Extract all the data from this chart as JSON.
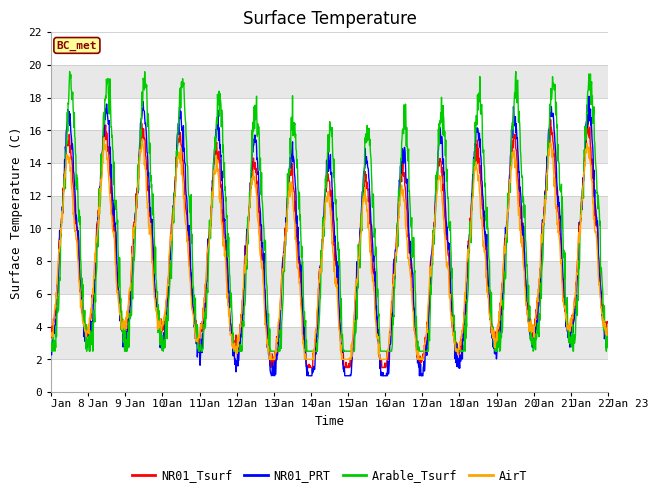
{
  "title": "Surface Temperature",
  "xlabel": "Time",
  "ylabel": "Surface Temperature (C)",
  "ylim": [
    0,
    22
  ],
  "yticks": [
    0,
    2,
    4,
    6,
    8,
    10,
    12,
    14,
    16,
    18,
    20,
    22
  ],
  "xtick_labels": [
    "Jan 8",
    "Jan 9",
    "Jan 10",
    "Jan 11",
    "Jan 12",
    "Jan 13",
    "Jan 14",
    "Jan 15",
    "Jan 16",
    "Jan 17",
    "Jan 18",
    "Jan 19",
    "Jan 20",
    "Jan 21",
    "Jan 22",
    "Jan 23"
  ],
  "annotation_text": "BC_met",
  "annotation_bg": "#FFFF99",
  "annotation_border": "#8B0000",
  "colors": {
    "NR01_Tsurf": "#FF0000",
    "NR01_PRT": "#0000FF",
    "Arable_Tsurf": "#00CC00",
    "AirT": "#FFA500"
  },
  "legend_labels": [
    "NR01_Tsurf",
    "NR01_PRT",
    "Arable_Tsurf",
    "AirT"
  ],
  "plot_bg": "#ffffff",
  "band_colors": [
    "#ffffff",
    "#e8e8e8"
  ],
  "title_fontsize": 12,
  "axis_fontsize": 9,
  "tick_fontsize": 8,
  "linewidth": 1.0
}
